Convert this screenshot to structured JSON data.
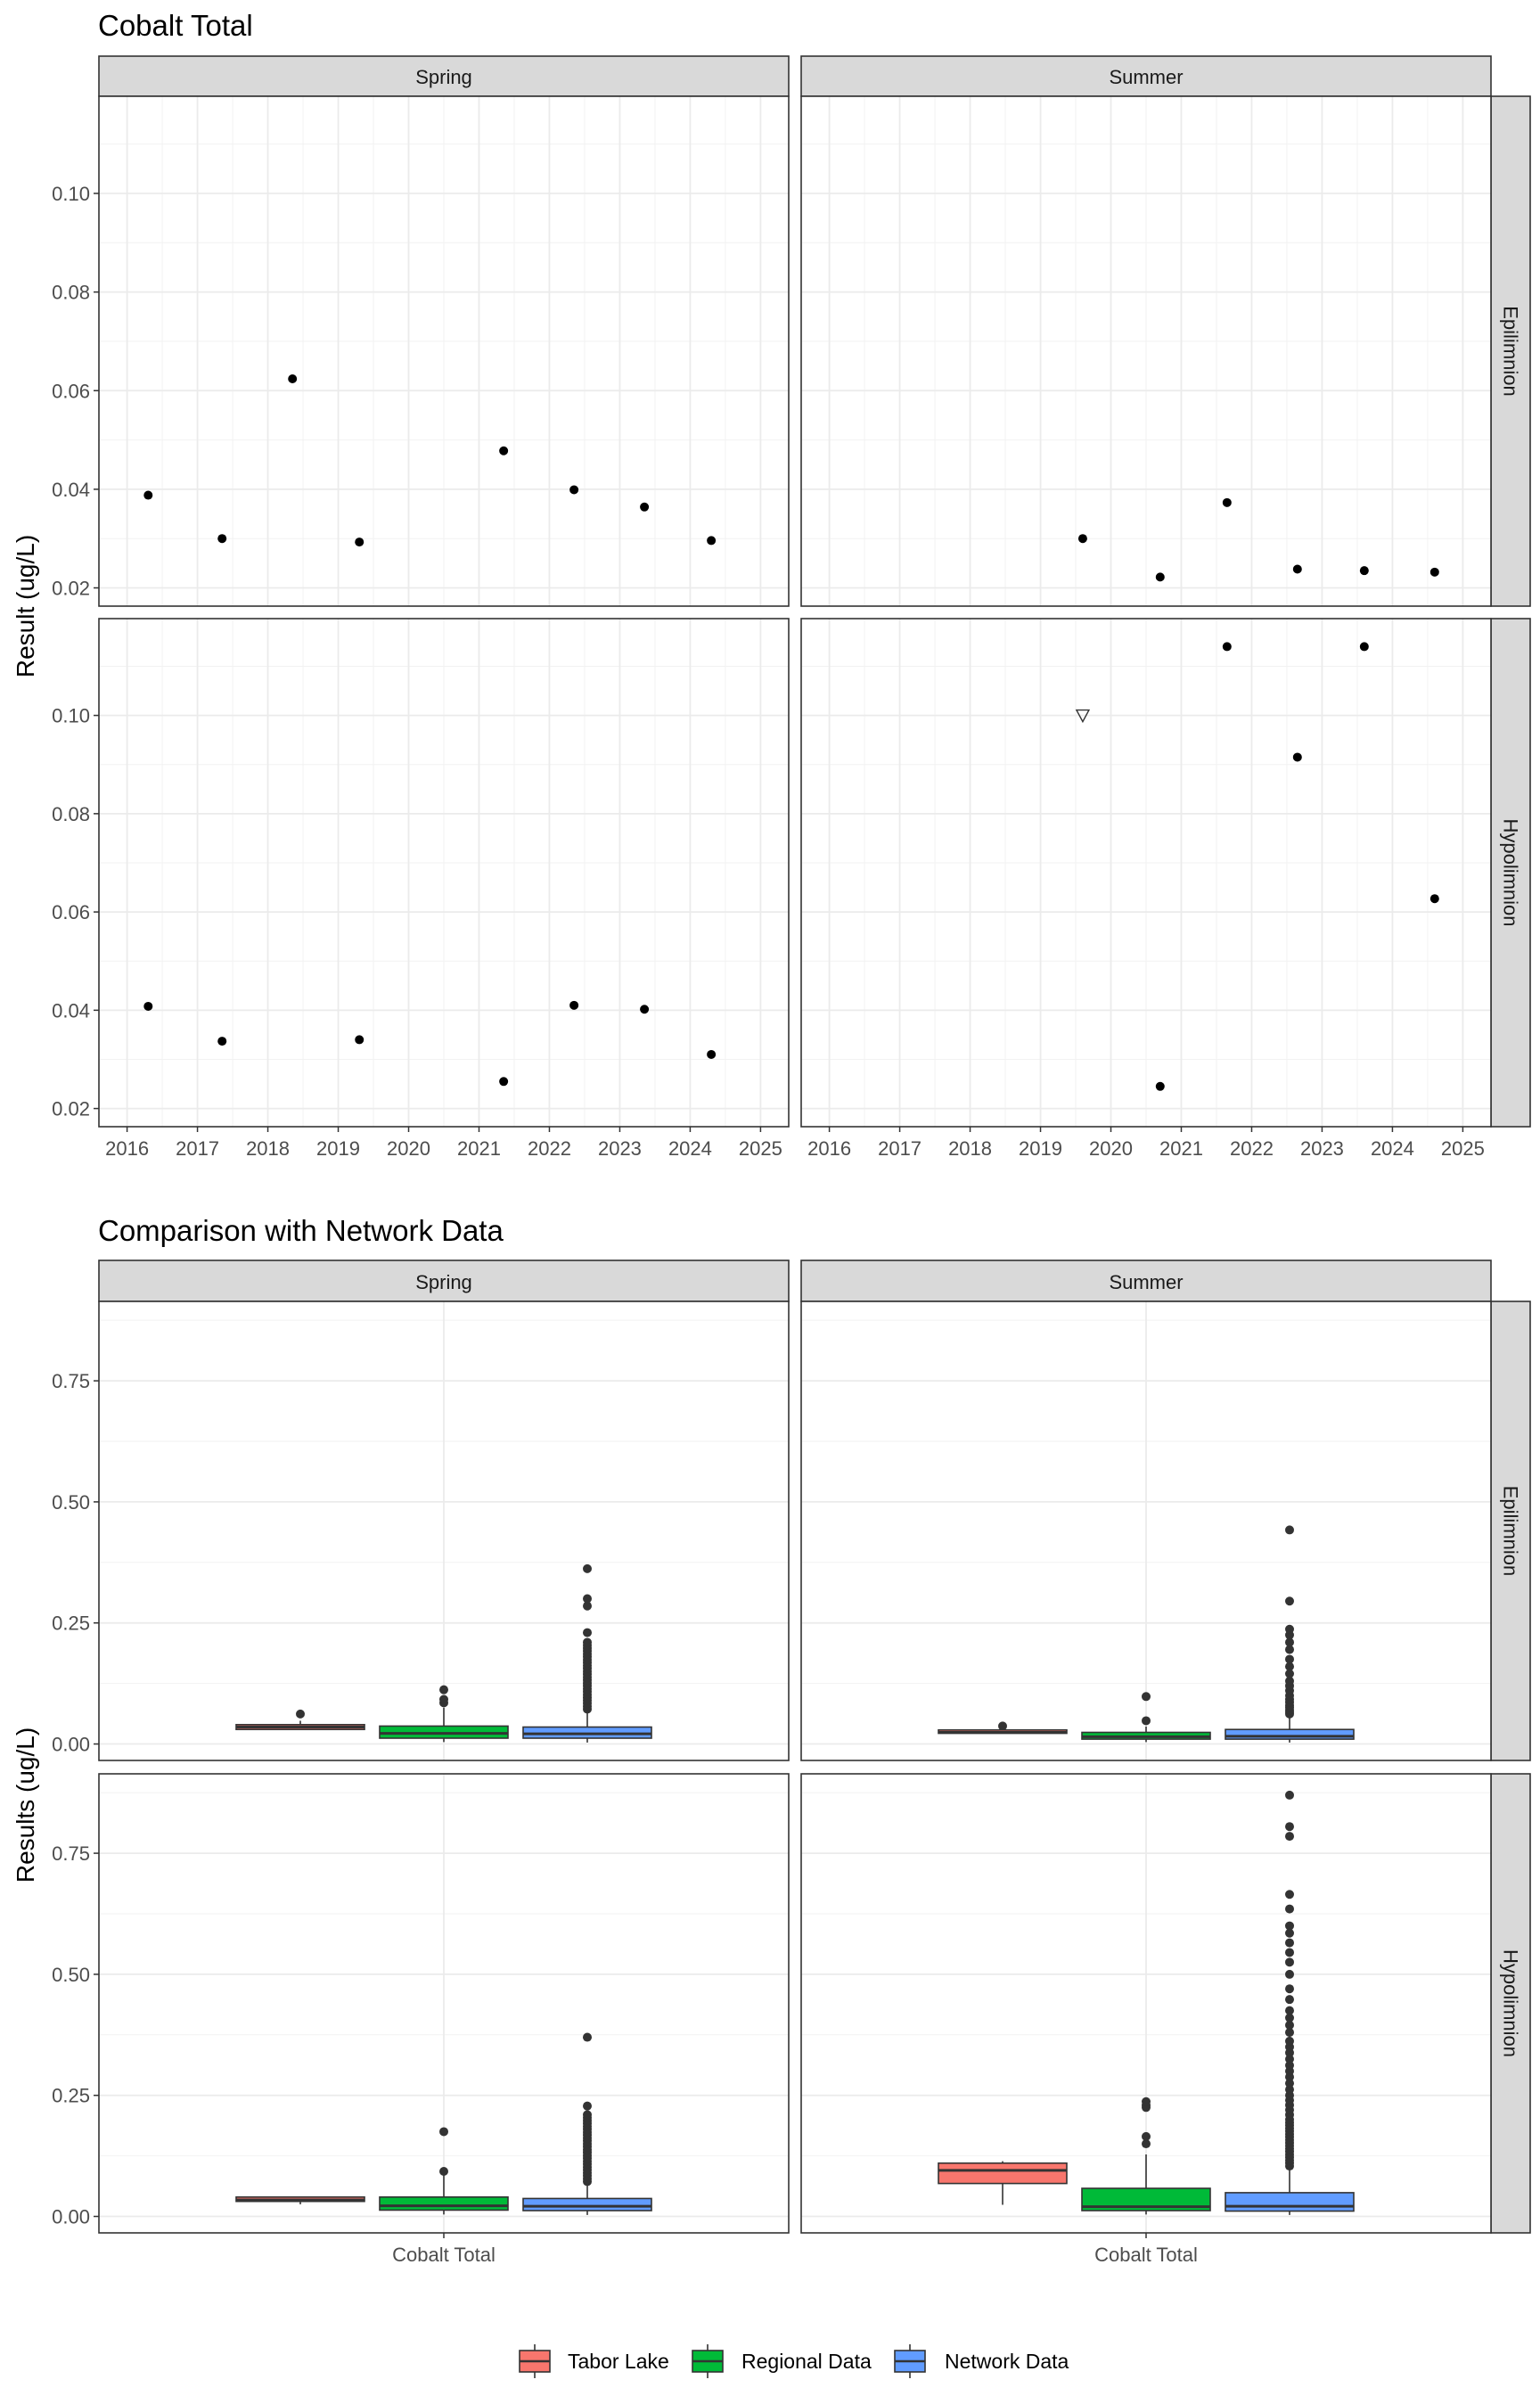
{
  "chart_data": [
    {
      "type": "scatter",
      "title": "Cobalt Total",
      "ylabel": "Result (ug/L)",
      "xlabel": "",
      "xlim": [
        2015.6,
        2025.4
      ],
      "ylim": [
        0.0163,
        0.1197
      ],
      "x_ticks": [
        "2016",
        "2017",
        "2018",
        "2019",
        "2020",
        "2021",
        "2022",
        "2023",
        "2024",
        "2025"
      ],
      "y_ticks": [
        "0.02",
        "0.04",
        "0.06",
        "0.08",
        "0.10"
      ],
      "columns": [
        "Spring",
        "Summer"
      ],
      "rows": [
        "Epilimnion",
        "Hypolimnion"
      ],
      "grid": true,
      "panels": [
        {
          "season": "Spring",
          "layer": "Epilimnion",
          "points": [
            {
              "x": 2016.3,
              "y": 0.0388
            },
            {
              "x": 2017.35,
              "y": 0.03
            },
            {
              "x": 2018.35,
              "y": 0.0624
            },
            {
              "x": 2019.3,
              "y": 0.0293
            },
            {
              "x": 2021.35,
              "y": 0.0478
            },
            {
              "x": 2022.35,
              "y": 0.0399
            },
            {
              "x": 2023.35,
              "y": 0.0364
            },
            {
              "x": 2024.3,
              "y": 0.0296
            }
          ]
        },
        {
          "season": "Summer",
          "layer": "Epilimnion",
          "points": [
            {
              "x": 2019.6,
              "y": 0.03
            },
            {
              "x": 2020.7,
              "y": 0.0222
            },
            {
              "x": 2021.65,
              "y": 0.0373
            },
            {
              "x": 2022.65,
              "y": 0.0238
            },
            {
              "x": 2023.6,
              "y": 0.0235
            },
            {
              "x": 2024.6,
              "y": 0.0232
            }
          ]
        },
        {
          "season": "Spring",
          "layer": "Hypolimnion",
          "points": [
            {
              "x": 2016.3,
              "y": 0.0408
            },
            {
              "x": 2017.35,
              "y": 0.0337
            },
            {
              "x": 2019.3,
              "y": 0.034
            },
            {
              "x": 2021.35,
              "y": 0.0255
            },
            {
              "x": 2022.35,
              "y": 0.041
            },
            {
              "x": 2023.35,
              "y": 0.0402
            },
            {
              "x": 2024.3,
              "y": 0.031
            }
          ]
        },
        {
          "season": "Summer",
          "layer": "Hypolimnion",
          "points": [
            {
              "x": 2019.6,
              "y": 0.1,
              "marker": "triangle-down-open"
            },
            {
              "x": 2020.7,
              "y": 0.0245
            },
            {
              "x": 2021.65,
              "y": 0.114
            },
            {
              "x": 2022.65,
              "y": 0.0915
            },
            {
              "x": 2023.6,
              "y": 0.114
            },
            {
              "x": 2024.6,
              "y": 0.0627
            }
          ]
        }
      ]
    },
    {
      "type": "box",
      "title": "Comparison with Network Data",
      "ylabel": "Results (ug/L)",
      "xlabel": "",
      "category": "Cobalt Total",
      "ylim": [
        -0.034,
        0.914
      ],
      "y_ticks": [
        "0.00",
        "0.25",
        "0.50",
        "0.75"
      ],
      "columns": [
        "Spring",
        "Summer"
      ],
      "rows": [
        "Epilimnion",
        "Hypolimnion"
      ],
      "grid": true,
      "legend_position": "bottom",
      "series": [
        {
          "name": "Tabor Lake",
          "color": "#F8766D"
        },
        {
          "name": "Regional Data",
          "color": "#00BA38"
        },
        {
          "name": "Network Data",
          "color": "#619CFF"
        }
      ],
      "panels": [
        {
          "season": "Spring",
          "layer": "Epilimnion",
          "boxes": [
            {
              "series": "Tabor Lake",
              "q1": 0.03,
              "median": 0.035,
              "q3": 0.04,
              "whisker_low": 0.029,
              "whisker_high": 0.048,
              "outliers": [
                0.062
              ]
            },
            {
              "series": "Regional Data",
              "q1": 0.012,
              "median": 0.022,
              "q3": 0.037,
              "whisker_low": 0.004,
              "whisker_high": 0.075,
              "outliers": [
                0.085,
                0.092,
                0.112
              ]
            },
            {
              "series": "Network Data",
              "q1": 0.012,
              "median": 0.021,
              "q3": 0.035,
              "whisker_low": 0.003,
              "whisker_high": 0.068,
              "outliers": [
                0.072,
                0.078,
                0.084,
                0.09,
                0.096,
                0.102,
                0.108,
                0.114,
                0.12,
                0.126,
                0.132,
                0.138,
                0.144,
                0.15,
                0.156,
                0.162,
                0.168,
                0.174,
                0.18,
                0.186,
                0.192,
                0.198,
                0.204,
                0.21,
                0.23,
                0.285,
                0.3,
                0.362
              ]
            }
          ]
        },
        {
          "season": "Summer",
          "layer": "Epilimnion",
          "boxes": [
            {
              "series": "Tabor Lake",
              "q1": 0.022,
              "median": 0.024,
              "q3": 0.029,
              "whisker_low": 0.022,
              "whisker_high": 0.03,
              "outliers": [
                0.037
              ]
            },
            {
              "series": "Regional Data",
              "q1": 0.01,
              "median": 0.015,
              "q3": 0.024,
              "whisker_low": 0.004,
              "whisker_high": 0.036,
              "outliers": [
                0.048,
                0.098
              ]
            },
            {
              "series": "Network Data",
              "q1": 0.01,
              "median": 0.016,
              "q3": 0.03,
              "whisker_low": 0.003,
              "whisker_high": 0.058,
              "outliers": [
                0.062,
                0.066,
                0.07,
                0.075,
                0.08,
                0.086,
                0.092,
                0.1,
                0.11,
                0.12,
                0.13,
                0.145,
                0.16,
                0.175,
                0.195,
                0.21,
                0.225,
                0.237,
                0.295,
                0.442
              ]
            }
          ]
        },
        {
          "season": "Spring",
          "layer": "Hypolimnion",
          "boxes": [
            {
              "series": "Tabor Lake",
              "q1": 0.031,
              "median": 0.034,
              "q3": 0.04,
              "whisker_low": 0.025,
              "whisker_high": 0.041,
              "outliers": []
            },
            {
              "series": "Regional Data",
              "q1": 0.013,
              "median": 0.022,
              "q3": 0.04,
              "whisker_low": 0.004,
              "whisker_high": 0.085,
              "outliers": [
                0.093,
                0.175
              ]
            },
            {
              "series": "Network Data",
              "q1": 0.012,
              "median": 0.021,
              "q3": 0.037,
              "whisker_low": 0.003,
              "whisker_high": 0.068,
              "outliers": [
                0.072,
                0.078,
                0.084,
                0.09,
                0.096,
                0.102,
                0.108,
                0.114,
                0.12,
                0.126,
                0.132,
                0.138,
                0.144,
                0.15,
                0.156,
                0.162,
                0.168,
                0.174,
                0.18,
                0.186,
                0.192,
                0.198,
                0.204,
                0.21,
                0.228,
                0.37
              ]
            }
          ]
        },
        {
          "season": "Summer",
          "layer": "Hypolimnion",
          "boxes": [
            {
              "series": "Tabor Lake",
              "q1": 0.068,
              "median": 0.095,
              "q3": 0.11,
              "whisker_low": 0.024,
              "whisker_high": 0.114,
              "outliers": []
            },
            {
              "series": "Regional Data",
              "q1": 0.012,
              "median": 0.02,
              "q3": 0.058,
              "whisker_low": 0.004,
              "whisker_high": 0.128,
              "outliers": [
                0.15,
                0.165,
                0.225,
                0.23,
                0.237
              ]
            },
            {
              "series": "Network Data",
              "q1": 0.011,
              "median": 0.021,
              "q3": 0.049,
              "whisker_low": 0.003,
              "whisker_high": 0.1,
              "outliers": [
                0.104,
                0.11,
                0.116,
                0.122,
                0.128,
                0.134,
                0.14,
                0.146,
                0.152,
                0.158,
                0.164,
                0.17,
                0.176,
                0.182,
                0.188,
                0.194,
                0.2,
                0.21,
                0.22,
                0.23,
                0.24,
                0.25,
                0.262,
                0.275,
                0.288,
                0.3,
                0.312,
                0.325,
                0.338,
                0.35,
                0.362,
                0.38,
                0.395,
                0.41,
                0.425,
                0.448,
                0.47,
                0.5,
                0.525,
                0.545,
                0.565,
                0.585,
                0.6,
                0.635,
                0.665,
                0.785,
                0.805,
                0.87
              ]
            }
          ]
        }
      ]
    }
  ]
}
